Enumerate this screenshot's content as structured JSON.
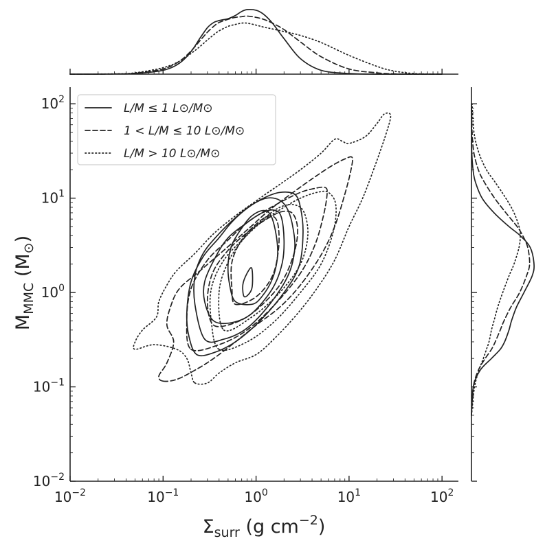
{
  "chart_data": {
    "type": "contour",
    "xlabel_main": "Σ",
    "xlabel_sub": "surr",
    "xlabel_tail": " (g cm",
    "xlabel_exp": "−2",
    "xlabel_close": ")",
    "ylabel_main": "M",
    "ylabel_sub": "MMC",
    "ylabel_tail": " (M",
    "ylabel_sunsub": "⊙",
    "ylabel_close": ")",
    "xscale": "log",
    "yscale": "log",
    "xlim": [
      0.01,
      150
    ],
    "ylim": [
      0.01,
      150
    ],
    "x_ticks": [
      {
        "base": "10",
        "exp": "−2"
      },
      {
        "base": "10",
        "exp": "−1"
      },
      {
        "base": "10",
        "exp": "0"
      },
      {
        "base": "10",
        "exp": "1"
      },
      {
        "base": "10",
        "exp": "2"
      }
    ],
    "y_ticks": [
      {
        "base": "10",
        "exp": "−2"
      },
      {
        "base": "10",
        "exp": "−1"
      },
      {
        "base": "10",
        "exp": "0"
      },
      {
        "base": "10",
        "exp": "1"
      },
      {
        "base": "10",
        "exp": "2"
      }
    ],
    "legend_position": "top-left",
    "series": [
      {
        "name": "L/M ≤ 1 L⊙/M⊙",
        "style": "solid",
        "contours": [
          [
            [
              0.6,
              0.8
            ],
            [
              0.9,
              0.75
            ],
            [
              1.15,
              0.9
            ],
            [
              1.5,
              1.4
            ],
            [
              1.7,
              2.4
            ],
            [
              1.65,
              4
            ],
            [
              1.45,
              6.5
            ],
            [
              1.2,
              7.4
            ],
            [
              0.9,
              6.5
            ],
            [
              0.7,
              4.8
            ],
            [
              0.55,
              3.2
            ],
            [
              0.5,
              2
            ],
            [
              0.52,
              1.2
            ],
            [
              0.6,
              0.8
            ]
          ],
          [
            [
              0.75,
              0.9
            ],
            [
              0.9,
              1.1
            ],
            [
              0.9,
              1.8
            ],
            [
              0.8,
              1.6
            ],
            [
              0.72,
              1.2
            ],
            [
              0.75,
              0.9
            ]
          ],
          [
            [
              0.35,
              0.5
            ],
            [
              0.55,
              0.48
            ],
            [
              0.9,
              0.6
            ],
            [
              1.5,
              1.1
            ],
            [
              1.9,
              2
            ],
            [
              2.0,
              3.6
            ],
            [
              1.85,
              6.5
            ],
            [
              1.5,
              7.5
            ],
            [
              1.1,
              6.8
            ],
            [
              0.8,
              5.5
            ],
            [
              0.5,
              3.8
            ],
            [
              0.36,
              2.3
            ],
            [
              0.28,
              1.3
            ],
            [
              0.28,
              0.8
            ],
            [
              0.35,
              0.5
            ]
          ],
          [
            [
              0.28,
              0.32
            ],
            [
              0.45,
              0.32
            ],
            [
              0.8,
              0.42
            ],
            [
              1.4,
              0.75
            ],
            [
              2.2,
              1.5
            ],
            [
              2.6,
              2.8
            ],
            [
              2.5,
              4.8
            ],
            [
              2.2,
              7.5
            ],
            [
              1.8,
              9.5
            ],
            [
              1.3,
              10
            ],
            [
              0.9,
              8.5
            ],
            [
              0.6,
              6.2
            ],
            [
              0.4,
              4.2
            ],
            [
              0.27,
              2.6
            ],
            [
              0.22,
              1.5
            ],
            [
              0.22,
              0.75
            ],
            [
              0.28,
              0.32
            ]
          ],
          [
            [
              0.23,
              0.22
            ],
            [
              0.35,
              0.23
            ],
            [
              0.6,
              0.3
            ],
            [
              1.1,
              0.5
            ],
            [
              2.0,
              1.0
            ],
            [
              2.9,
              1.9
            ],
            [
              3.2,
              4.2
            ],
            [
              3.0,
              8
            ],
            [
              2.6,
              11
            ],
            [
              1.8,
              11.5
            ],
            [
              1.2,
              10
            ],
            [
              0.8,
              7.8
            ],
            [
              0.55,
              5.6
            ],
            [
              0.4,
              3.8
            ],
            [
              0.27,
              2.4
            ],
            [
              0.2,
              1.3
            ],
            [
              0.18,
              0.6
            ],
            [
              0.19,
              0.34
            ],
            [
              0.23,
              0.22
            ]
          ]
        ]
      },
      {
        "name": "1 < L/M ≤ 10 L⊙/M⊙",
        "style": "dashed",
        "contours": [
          [
            [
              0.6,
              0.75
            ],
            [
              1.0,
              0.9
            ],
            [
              1.5,
              1.5
            ],
            [
              1.75,
              3
            ],
            [
              1.7,
              5.5
            ],
            [
              1.4,
              6.5
            ],
            [
              1.0,
              5.3
            ],
            [
              0.7,
              3.6
            ],
            [
              0.55,
              2.1
            ],
            [
              0.55,
              1.1
            ],
            [
              0.6,
              0.75
            ]
          ],
          [
            [
              0.35,
              0.45
            ],
            [
              0.6,
              0.48
            ],
            [
              1.0,
              0.65
            ],
            [
              1.8,
              1.2
            ],
            [
              2.5,
              2.4
            ],
            [
              2.8,
              4.5
            ],
            [
              2.5,
              6.8
            ],
            [
              1.9,
              7.2
            ],
            [
              1.3,
              6
            ],
            [
              0.8,
              4.3
            ],
            [
              0.5,
              2.8
            ],
            [
              0.34,
              1.6
            ],
            [
              0.3,
              0.8
            ],
            [
              0.35,
              0.45
            ]
          ],
          [
            [
              0.2,
              0.25
            ],
            [
              0.4,
              0.28
            ],
            [
              0.8,
              0.4
            ],
            [
              1.6,
              0.75
            ],
            [
              3.0,
              1.6
            ],
            [
              4.3,
              3.2
            ],
            [
              5.3,
              6.5
            ],
            [
              5.8,
              11
            ],
            [
              5.5,
              13
            ],
            [
              4.0,
              12.5
            ],
            [
              3.0,
              11.5
            ],
            [
              2.0,
              9.5
            ],
            [
              1.3,
              7.5
            ],
            [
              0.8,
              5.5
            ],
            [
              0.5,
              3.6
            ],
            [
              0.3,
              2.2
            ],
            [
              0.2,
              1.1
            ],
            [
              0.18,
              0.5
            ],
            [
              0.2,
              0.25
            ]
          ],
          [
            [
              0.1,
              0.115
            ],
            [
              0.14,
              0.12
            ],
            [
              0.22,
              0.15
            ],
            [
              0.35,
              0.2
            ],
            [
              0.6,
              0.3
            ],
            [
              1.0,
              0.45
            ],
            [
              1.8,
              0.7
            ],
            [
              3.0,
              1.2
            ],
            [
              5.0,
              2.5
            ],
            [
              7.0,
              5.0
            ],
            [
              9.0,
              11
            ],
            [
              10.5,
              20
            ],
            [
              10.8,
              27
            ],
            [
              9.0,
              26
            ],
            [
              6.5,
              22
            ],
            [
              4.0,
              16
            ],
            [
              2.5,
              11.5
            ],
            [
              1.4,
              7.5
            ],
            [
              0.8,
              4.6
            ],
            [
              0.45,
              2.8
            ],
            [
              0.25,
              1.7
            ],
            [
              0.15,
              1.1
            ],
            [
              0.12,
              0.7
            ],
            [
              0.11,
              0.45
            ],
            [
              0.13,
              0.3
            ],
            [
              0.11,
              0.18
            ],
            [
              0.09,
              0.13
            ],
            [
              0.1,
              0.115
            ]
          ]
        ]
      },
      {
        "name": "L/M > 10 L⊙/M⊙",
        "style": "dotted",
        "contours": [
          [
            [
              0.45,
              0.4
            ],
            [
              0.9,
              0.55
            ],
            [
              1.8,
              1.0
            ],
            [
              3.0,
              2.0
            ],
            [
              3.6,
              4.0
            ],
            [
              3.3,
              7.0
            ],
            [
              2.6,
              8.5
            ],
            [
              1.8,
              8.0
            ],
            [
              1.2,
              6.0
            ],
            [
              0.75,
              3.8
            ],
            [
              0.5,
              2.1
            ],
            [
              0.4,
              1.0
            ],
            [
              0.45,
              0.4
            ]
          ],
          [
            [
              0.4,
              0.25
            ],
            [
              0.8,
              0.3
            ],
            [
              1.6,
              0.5
            ],
            [
              3.0,
              1.0
            ],
            [
              5.0,
              2.0
            ],
            [
              6.8,
              4.5
            ],
            [
              7.2,
              8.5
            ],
            [
              6.0,
              11.5
            ],
            [
              4.5,
              11.5
            ],
            [
              3.0,
              10
            ],
            [
              2.0,
              8
            ],
            [
              1.2,
              5.8
            ],
            [
              0.75,
              3.8
            ],
            [
              0.45,
              2.2
            ],
            [
              0.33,
              1.1
            ],
            [
              0.33,
              0.5
            ],
            [
              0.4,
              0.25
            ]
          ],
          [
            [
              0.22,
              0.11
            ],
            [
              0.3,
              0.11
            ],
            [
              0.4,
              0.14
            ],
            [
              0.6,
              0.18
            ],
            [
              1.0,
              0.22
            ],
            [
              1.6,
              0.33
            ],
            [
              2.8,
              0.6
            ],
            [
              4.5,
              1.1
            ],
            [
              7.0,
              2.2
            ],
            [
              10,
              5
            ],
            [
              14,
              10
            ],
            [
              19,
              22
            ],
            [
              25,
              48
            ],
            [
              28,
              75
            ],
            [
              24,
              78
            ],
            [
              20,
              62
            ],
            [
              15,
              45
            ],
            [
              10,
              38
            ],
            [
              8.5,
              40
            ],
            [
              7.0,
              42
            ],
            [
              5.0,
              30
            ],
            [
              3.0,
              20
            ],
            [
              1.8,
              14
            ],
            [
              1.1,
              10
            ],
            [
              0.6,
              6.5
            ],
            [
              0.35,
              4.2
            ],
            [
              0.22,
              2.6
            ],
            [
              0.14,
              1.7
            ],
            [
              0.11,
              1.2
            ],
            [
              0.09,
              0.8
            ],
            [
              0.085,
              0.55
            ],
            [
              0.06,
              0.4
            ],
            [
              0.05,
              0.3
            ],
            [
              0.05,
              0.25
            ],
            [
              0.08,
              0.28
            ],
            [
              0.14,
              0.25
            ],
            [
              0.18,
              0.2
            ],
            [
              0.2,
              0.14
            ],
            [
              0.22,
              0.11
            ]
          ]
        ]
      }
    ],
    "top_marginal": {
      "x": [
        0.01,
        0.03,
        0.05,
        0.1,
        0.15,
        0.2,
        0.25,
        0.3,
        0.35,
        0.4,
        0.5,
        0.6,
        0.7,
        0.8,
        1.0,
        1.2,
        1.5,
        2.0,
        3.0,
        5.0,
        10,
        20,
        30,
        50,
        100
      ],
      "series": [
        {
          "name": "solid",
          "density": [
            0,
            0.002,
            0.01,
            0.06,
            0.17,
            0.35,
            0.56,
            0.72,
            0.8,
            0.83,
            0.86,
            0.91,
            0.97,
            1.0,
            0.99,
            0.93,
            0.79,
            0.55,
            0.24,
            0.06,
            0.01,
            0,
            0,
            0,
            0
          ]
        },
        {
          "name": "dashed",
          "density": [
            0,
            0.003,
            0.015,
            0.08,
            0.2,
            0.36,
            0.52,
            0.65,
            0.74,
            0.8,
            0.85,
            0.88,
            0.89,
            0.9,
            0.88,
            0.85,
            0.79,
            0.69,
            0.5,
            0.27,
            0.08,
            0.02,
            0.005,
            0,
            0
          ]
        },
        {
          "name": "dotted",
          "density": [
            0,
            0.005,
            0.02,
            0.1,
            0.2,
            0.32,
            0.43,
            0.53,
            0.61,
            0.67,
            0.74,
            0.77,
            0.79,
            0.79,
            0.76,
            0.73,
            0.7,
            0.66,
            0.6,
            0.49,
            0.29,
            0.12,
            0.05,
            0.01,
            0
          ]
        }
      ]
    },
    "right_marginal": {
      "y": [
        0.05,
        0.1,
        0.15,
        0.2,
        0.25,
        0.3,
        0.4,
        0.5,
        0.7,
        1.0,
        1.5,
        2.0,
        3.0,
        4.0,
        5.0,
        7.0,
        10,
        15,
        20,
        30,
        50,
        100
      ],
      "series": [
        {
          "name": "solid",
          "density": [
            0,
            0.03,
            0.14,
            0.32,
            0.46,
            0.53,
            0.6,
            0.64,
            0.72,
            0.84,
            0.97,
            1.0,
            0.94,
            0.78,
            0.6,
            0.36,
            0.17,
            0.06,
            0.025,
            0.006,
            0.001,
            0
          ]
        },
        {
          "name": "dashed",
          "density": [
            0,
            0.03,
            0.11,
            0.22,
            0.32,
            0.38,
            0.46,
            0.52,
            0.63,
            0.77,
            0.88,
            0.93,
            0.9,
            0.82,
            0.73,
            0.55,
            0.37,
            0.2,
            0.11,
            0.04,
            0.01,
            0
          ]
        },
        {
          "name": "dotted",
          "density": [
            0,
            0.05,
            0.12,
            0.19,
            0.24,
            0.28,
            0.32,
            0.36,
            0.42,
            0.5,
            0.6,
            0.68,
            0.76,
            0.78,
            0.76,
            0.68,
            0.55,
            0.37,
            0.24,
            0.12,
            0.04,
            0.01
          ]
        }
      ]
    }
  }
}
